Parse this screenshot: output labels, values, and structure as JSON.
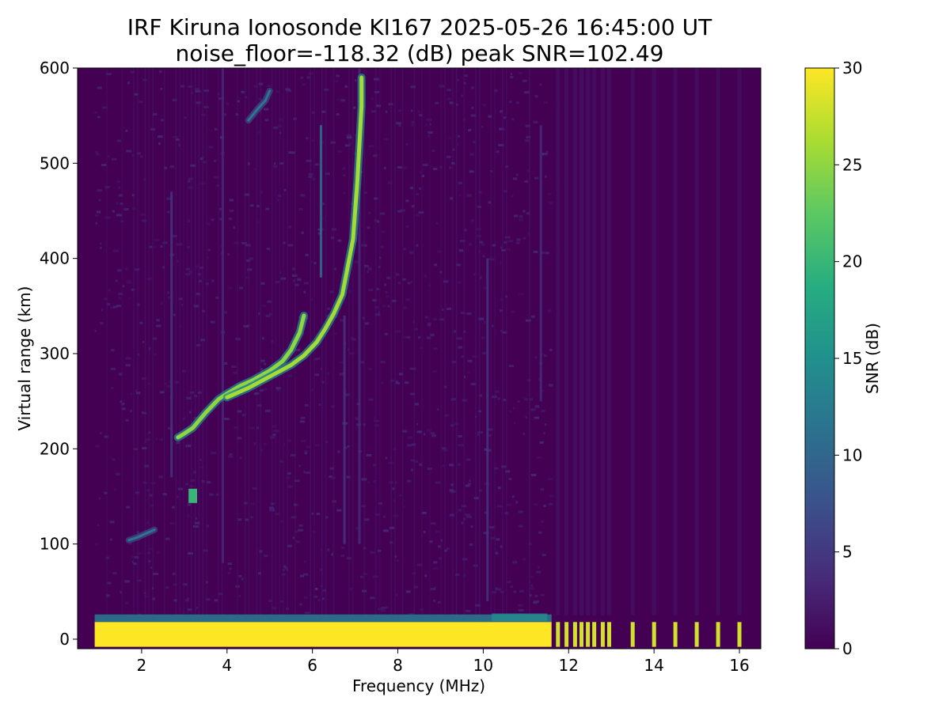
{
  "chart_data": {
    "type": "heatmap",
    "title": "IRF Kiruna Ionosonde KI167 2025-05-26 16:45:00  UT",
    "subtitle": "noise_floor=-118.32 (dB) peak SNR=102.49",
    "xlabel": "Frequency (MHz)",
    "ylabel": "Virtual range (km)",
    "xlim": [
      0.5,
      16.5
    ],
    "ylim": [
      -10,
      600
    ],
    "xticks": [
      2,
      4,
      6,
      8,
      10,
      12,
      14,
      16
    ],
    "yticks": [
      0,
      100,
      200,
      300,
      400,
      500,
      600
    ],
    "colorbar": {
      "label": "SNR (dB)",
      "range": [
        0,
        30
      ],
      "ticks": [
        0,
        5,
        10,
        15,
        20,
        25,
        30
      ],
      "colormap": "viridis"
    },
    "background_color": "#440154",
    "data_coverage": {
      "dense_sweep_mhz": [
        0.9,
        11.6
      ],
      "sparse_channels_mhz": [
        11.75,
        11.95,
        12.15,
        12.3,
        12.45,
        12.6,
        12.8,
        12.95,
        13.5,
        14.0,
        14.5,
        15.0,
        15.5,
        16.0
      ]
    },
    "features": {
      "ground_echo": {
        "range_km": [
          -8,
          18
        ],
        "snr_db": 30,
        "freq_mhz": [
          0.9,
          11.6
        ]
      },
      "e_layer_echo": {
        "points": [
          [
            1.7,
            104
          ],
          [
            1.9,
            107
          ],
          [
            2.1,
            111
          ],
          [
            2.3,
            115
          ]
        ],
        "snr_db": 12
      },
      "es_patch": {
        "freq_mhz": [
          3.1,
          3.3
        ],
        "range_km": [
          143,
          158
        ],
        "snr_db": 20
      },
      "f_trace_o": {
        "points": [
          [
            2.85,
            212
          ],
          [
            3.0,
            216
          ],
          [
            3.2,
            222
          ],
          [
            3.5,
            238
          ],
          [
            3.8,
            252
          ],
          [
            4.0,
            258
          ],
          [
            4.3,
            266
          ],
          [
            4.6,
            272
          ],
          [
            5.0,
            282
          ],
          [
            5.3,
            292
          ],
          [
            5.5,
            304
          ],
          [
            5.7,
            322
          ],
          [
            5.8,
            340
          ]
        ],
        "snr_db": 25
      },
      "f_trace_x": {
        "points": [
          [
            4.0,
            254
          ],
          [
            4.5,
            264
          ],
          [
            5.0,
            276
          ],
          [
            5.5,
            288
          ],
          [
            5.8,
            298
          ],
          [
            6.1,
            312
          ],
          [
            6.3,
            326
          ],
          [
            6.5,
            342
          ],
          [
            6.7,
            362
          ],
          [
            6.8,
            385
          ],
          [
            6.95,
            420
          ],
          [
            7.0,
            450
          ],
          [
            7.05,
            480
          ],
          [
            7.1,
            520
          ],
          [
            7.15,
            560
          ],
          [
            7.15,
            590
          ]
        ],
        "snr_db": 26
      },
      "second_hop": {
        "points": [
          [
            4.5,
            545
          ],
          [
            4.7,
            556
          ],
          [
            4.9,
            566
          ],
          [
            5.0,
            576
          ]
        ],
        "snr_db": 12
      },
      "vertical_streaks": [
        {
          "freq_mhz": 6.2,
          "range_km": [
            380,
            540
          ],
          "snr_db": 12
        },
        {
          "freq_mhz": 2.7,
          "range_km": [
            170,
            470
          ],
          "snr_db": 5
        },
        {
          "freq_mhz": 10.1,
          "range_km": [
            40,
            400
          ],
          "snr_db": 5
        },
        {
          "freq_mhz": 3.9,
          "range_km": [
            80,
            600
          ],
          "snr_db": 3.5
        },
        {
          "freq_mhz": 6.75,
          "range_km": [
            100,
            340
          ],
          "snr_db": 5
        },
        {
          "freq_mhz": 7.1,
          "range_km": [
            100,
            600
          ],
          "snr_db": 4
        },
        {
          "freq_mhz": 11.35,
          "range_km": [
            250,
            540
          ],
          "snr_db": 4
        }
      ],
      "band_19_27km": {
        "freq_mhz": [
          10.2,
          11.5
        ],
        "range_km": [
          19,
          27
        ],
        "snr_db": 14
      }
    }
  }
}
